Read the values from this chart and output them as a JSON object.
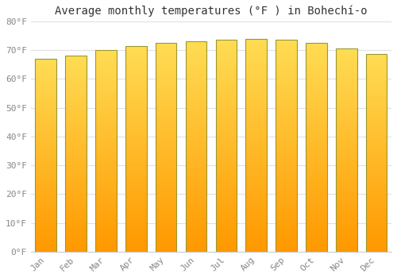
{
  "months": [
    "Jan",
    "Feb",
    "Mar",
    "Apr",
    "May",
    "Jun",
    "Jul",
    "Aug",
    "Sep",
    "Oct",
    "Nov",
    "Dec"
  ],
  "values": [
    67.0,
    68.0,
    70.0,
    71.5,
    72.5,
    73.0,
    73.5,
    74.0,
    73.5,
    72.5,
    70.5,
    68.5
  ],
  "title": "Average monthly temperatures (°F ) in Bohechí-o",
  "bar_color_light": "#FFD060",
  "bar_color_dark": "#FFA010",
  "bar_edge_color": "#888800",
  "background_color": "#FFFFFF",
  "grid_color": "#E0E0E0",
  "ytick_labels": [
    "0°F",
    "10°F",
    "20°F",
    "30°F",
    "40°F",
    "50°F",
    "60°F",
    "70°F",
    "80°F"
  ],
  "ytick_values": [
    0,
    10,
    20,
    30,
    40,
    50,
    60,
    70,
    80
  ],
  "ylim": [
    0,
    80
  ],
  "title_fontsize": 10,
  "tick_fontsize": 8,
  "tick_color": "#888888",
  "font_family": "monospace"
}
